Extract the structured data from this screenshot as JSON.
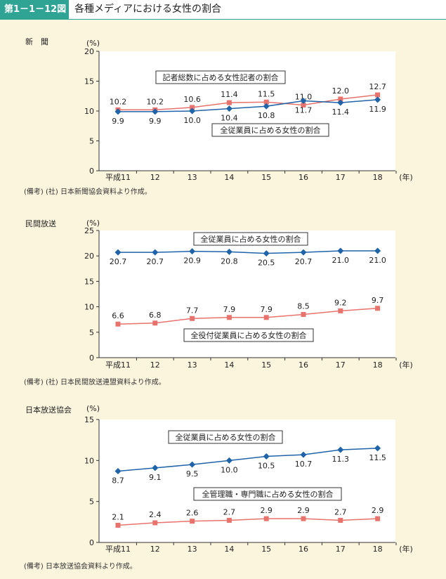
{
  "figure": {
    "label": "第1－1－12図",
    "title": "各種メディアにおける女性の割合"
  },
  "charts": [
    {
      "label": "新　聞",
      "unit": "(%)",
      "year_unit": "(年)",
      "note": "(備考) (社) 日本新聞協会資料より作成。",
      "callouts": [
        "記者総数に占める女性記者の割合",
        "全従業員に占める女性の割合"
      ]
    },
    {
      "label": "民間放送",
      "unit": "(%)",
      "year_unit": "(年)",
      "note": "(備考) (社) 日本民間放送連盟資料より作成。",
      "callouts": [
        "全従業員に占める女性の割合",
        "全役付従業員に占める女性の割合"
      ]
    },
    {
      "label": "日本放送協会",
      "unit": "(%)",
      "year_unit": "(年)",
      "note": "(備考) 日本放送協会資料より作成。",
      "callouts": [
        "全従業員に占める女性の割合",
        "全管理職・専門職に占める女性の割合"
      ]
    }
  ],
  "chart_data": [
    {
      "type": "line",
      "categories": [
        "平成11",
        "12",
        "13",
        "14",
        "15",
        "16",
        "17",
        "18"
      ],
      "ylim": [
        0,
        20
      ],
      "yticks": [
        0,
        5,
        10,
        15,
        20
      ],
      "series": [
        {
          "name": "記者総数に占める女性記者の割合",
          "color": "#e8726c",
          "marker": "square",
          "label_pos": "above",
          "values": [
            10.2,
            10.2,
            10.6,
            11.4,
            11.5,
            11.0,
            12.0,
            12.7
          ]
        },
        {
          "name": "全従業員に占める女性の割合",
          "color": "#1f63a9",
          "marker": "diamond",
          "label_pos": "below",
          "values": [
            9.9,
            9.9,
            10.0,
            10.4,
            10.8,
            11.7,
            11.4,
            11.9
          ]
        }
      ]
    },
    {
      "type": "line",
      "categories": [
        "平成11",
        "12",
        "13",
        "14",
        "15",
        "16",
        "17",
        "18"
      ],
      "ylim": [
        0,
        25
      ],
      "yticks": [
        0,
        5,
        10,
        15,
        20,
        25
      ],
      "series": [
        {
          "name": "全従業員に占める女性の割合",
          "color": "#1f63a9",
          "marker": "diamond",
          "label_pos": "below",
          "values": [
            20.7,
            20.7,
            20.9,
            20.8,
            20.5,
            20.7,
            21.0,
            21.0
          ]
        },
        {
          "name": "全役付従業員に占める女性の割合",
          "color": "#e8726c",
          "marker": "square",
          "label_pos": "above",
          "values": [
            6.6,
            6.8,
            7.7,
            7.9,
            7.9,
            8.5,
            9.2,
            9.7
          ]
        }
      ]
    },
    {
      "type": "line",
      "categories": [
        "平成11",
        "12",
        "13",
        "14",
        "15",
        "16",
        "17",
        "18"
      ],
      "ylim": [
        0,
        15
      ],
      "yticks": [
        0,
        5,
        10,
        15
      ],
      "series": [
        {
          "name": "全従業員に占める女性の割合",
          "color": "#1f63a9",
          "marker": "diamond",
          "label_pos": "below",
          "values": [
            8.7,
            9.1,
            9.5,
            10.0,
            10.5,
            10.7,
            11.3,
            11.5
          ]
        },
        {
          "name": "全管理職・専門職に占める女性の割合",
          "color": "#e8726c",
          "marker": "square",
          "label_pos": "above",
          "values": [
            2.1,
            2.4,
            2.6,
            2.7,
            2.9,
            2.9,
            2.7,
            2.9
          ]
        }
      ]
    }
  ]
}
